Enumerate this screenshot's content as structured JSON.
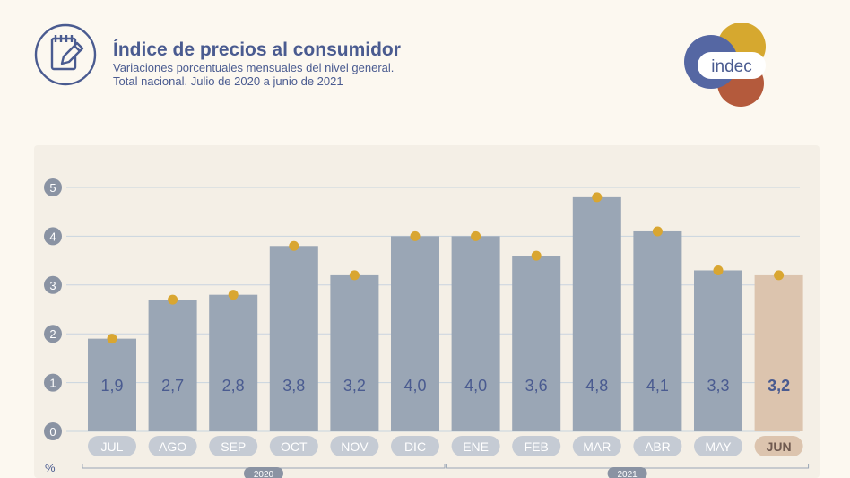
{
  "header": {
    "title": "Índice de precios al consumidor",
    "subtitle_line1": "Variaciones porcentuales mensuales del nivel general.",
    "subtitle_line2": "Total nacional. Julio de 2020 a junio de 2021"
  },
  "logo": {
    "text": "indec"
  },
  "colors": {
    "bar": "#9aa6b5",
    "bar_highlight": "#dcc4ae",
    "marker": "#d9a631",
    "text": "#4a5b90",
    "axis_bubble": "#8a93a3",
    "month_pill": "#c5cbd4"
  },
  "chart_data": {
    "type": "bar",
    "title": "Índice de precios al consumidor",
    "ylabel": "%",
    "ylim": [
      0,
      5
    ],
    "yticks": [
      0,
      1,
      2,
      3,
      4,
      5
    ],
    "grid": true,
    "categories": [
      "JUL",
      "AGO",
      "SEP",
      "OCT",
      "NOV",
      "DIC",
      "ENE",
      "FEB",
      "MAR",
      "ABR",
      "MAY",
      "JUN"
    ],
    "values": [
      1.9,
      2.7,
      2.8,
      3.8,
      3.2,
      4.0,
      4.0,
      3.6,
      4.8,
      4.1,
      3.3,
      3.2
    ],
    "labels": [
      "1,9",
      "2,7",
      "2,8",
      "3,8",
      "3,2",
      "4,0",
      "4,0",
      "3,6",
      "4,8",
      "4,1",
      "3,3",
      "3,2"
    ],
    "highlight_index": 11,
    "year_groups": [
      {
        "label": "2020",
        "from": 0,
        "to": 5
      },
      {
        "label": "2021",
        "from": 6,
        "to": 11
      }
    ]
  }
}
